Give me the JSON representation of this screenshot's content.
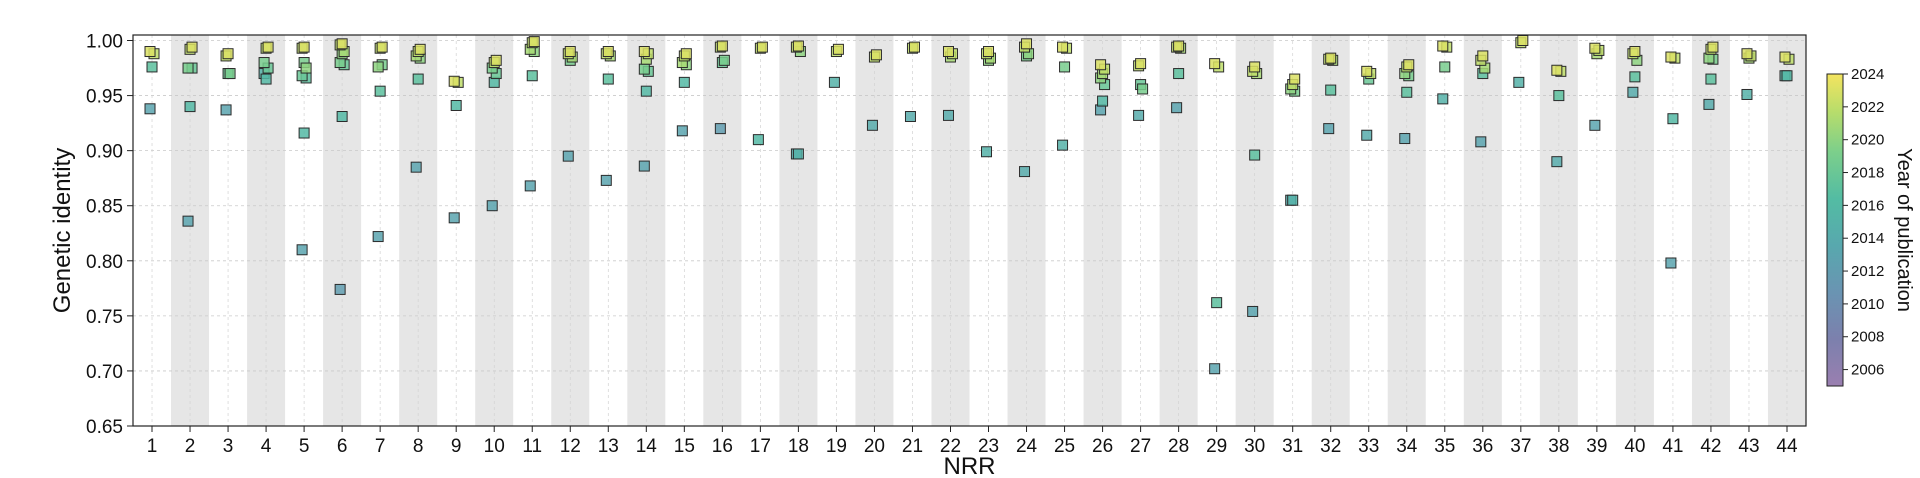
{
  "chart_data": {
    "type": "scatter",
    "xlabel": "NRR",
    "ylabel": "Genetic identity",
    "x_ticks": [
      "1",
      "2",
      "3",
      "4",
      "5",
      "6",
      "7",
      "8",
      "9",
      "10",
      "11",
      "12",
      "13",
      "14",
      "15",
      "16",
      "17",
      "18",
      "19",
      "20",
      "21",
      "22",
      "23",
      "24",
      "25",
      "26",
      "27",
      "28",
      "29",
      "30",
      "31",
      "32",
      "33",
      "34",
      "35",
      "36",
      "37",
      "38",
      "39",
      "40",
      "41",
      "42",
      "43",
      "44"
    ],
    "y_ticks": [
      "0.65",
      "0.70",
      "0.75",
      "0.80",
      "0.85",
      "0.90",
      "0.95",
      "1.00"
    ],
    "ylim": [
      0.65,
      1.005
    ],
    "grid": true,
    "alternating_shaded_columns": true,
    "colorbar": {
      "title": "Year of publication",
      "range": [
        2005,
        2024
      ],
      "ticks": [
        "2006",
        "2008",
        "2010",
        "2012",
        "2014",
        "2016",
        "2018",
        "2020",
        "2022",
        "2024"
      ],
      "colormap": "viridis"
    },
    "points": [
      {
        "nrr": 1,
        "values": [
          [
            0.99,
            2023
          ],
          [
            0.988,
            2022
          ],
          [
            0.976,
            2017
          ],
          [
            0.938,
            2013
          ]
        ]
      },
      {
        "nrr": 2,
        "values": [
          [
            0.994,
            2023
          ],
          [
            0.992,
            2022
          ],
          [
            0.975,
            2019
          ],
          [
            0.975,
            2018
          ],
          [
            0.94,
            2016
          ],
          [
            0.836,
            2013
          ]
        ]
      },
      {
        "nrr": 3,
        "values": [
          [
            0.988,
            2023
          ],
          [
            0.986,
            2022
          ],
          [
            0.97,
            2019
          ],
          [
            0.97,
            2018
          ],
          [
            0.937,
            2013
          ]
        ]
      },
      {
        "nrr": 4,
        "values": [
          [
            0.994,
            2023
          ],
          [
            0.993,
            2022
          ],
          [
            0.98,
            2019
          ],
          [
            0.975,
            2018
          ],
          [
            0.97,
            2015
          ],
          [
            0.965,
            2016
          ]
        ]
      },
      {
        "nrr": 5,
        "values": [
          [
            0.994,
            2023
          ],
          [
            0.993,
            2022
          ],
          [
            0.98,
            2019
          ],
          [
            0.975,
            2020
          ],
          [
            0.968,
            2018
          ],
          [
            0.966,
            2017
          ],
          [
            0.916,
            2016
          ],
          [
            0.81,
            2013
          ]
        ]
      },
      {
        "nrr": 6,
        "values": [
          [
            0.997,
            2023
          ],
          [
            0.996,
            2022
          ],
          [
            0.99,
            2021
          ],
          [
            0.988,
            2020
          ],
          [
            0.98,
            2019
          ],
          [
            0.978,
            2018
          ],
          [
            0.931,
            2016
          ],
          [
            0.774,
            2012
          ]
        ]
      },
      {
        "nrr": 7,
        "values": [
          [
            0.994,
            2023
          ],
          [
            0.993,
            2022
          ],
          [
            0.978,
            2019
          ],
          [
            0.976,
            2020
          ],
          [
            0.954,
            2017
          ],
          [
            0.822,
            2013
          ]
        ]
      },
      {
        "nrr": 8,
        "values": [
          [
            0.992,
            2023
          ],
          [
            0.99,
            2022
          ],
          [
            0.986,
            2021
          ],
          [
            0.984,
            2020
          ],
          [
            0.965,
            2017
          ],
          [
            0.885,
            2013
          ]
        ]
      },
      {
        "nrr": 9,
        "values": [
          [
            0.963,
            2023
          ],
          [
            0.962,
            2022
          ],
          [
            0.941,
            2016
          ],
          [
            0.839,
            2013
          ]
        ]
      },
      {
        "nrr": 10,
        "values": [
          [
            0.982,
            2023
          ],
          [
            0.98,
            2022
          ],
          [
            0.975,
            2019
          ],
          [
            0.97,
            2018
          ],
          [
            0.962,
            2016
          ],
          [
            0.85,
            2013
          ]
        ]
      },
      {
        "nrr": 11,
        "values": [
          [
            0.999,
            2023
          ],
          [
            0.998,
            2022
          ],
          [
            0.992,
            2021
          ],
          [
            0.99,
            2020
          ],
          [
            0.968,
            2017
          ],
          [
            0.868,
            2013
          ]
        ]
      },
      {
        "nrr": 12,
        "values": [
          [
            0.99,
            2023
          ],
          [
            0.988,
            2022
          ],
          [
            0.985,
            2021
          ],
          [
            0.982,
            2019
          ],
          [
            0.895,
            2013
          ]
        ]
      },
      {
        "nrr": 13,
        "values": [
          [
            0.99,
            2023
          ],
          [
            0.988,
            2022
          ],
          [
            0.986,
            2021
          ],
          [
            0.965,
            2017
          ],
          [
            0.873,
            2013
          ]
        ]
      },
      {
        "nrr": 14,
        "values": [
          [
            0.99,
            2023
          ],
          [
            0.988,
            2022
          ],
          [
            0.983,
            2021
          ],
          [
            0.974,
            2019
          ],
          [
            0.972,
            2018
          ],
          [
            0.954,
            2016
          ],
          [
            0.886,
            2013
          ]
        ]
      },
      {
        "nrr": 15,
        "values": [
          [
            0.988,
            2023
          ],
          [
            0.986,
            2022
          ],
          [
            0.98,
            2021
          ],
          [
            0.978,
            2020
          ],
          [
            0.962,
            2016
          ],
          [
            0.918,
            2013
          ]
        ]
      },
      {
        "nrr": 16,
        "values": [
          [
            0.995,
            2023
          ],
          [
            0.994,
            2022
          ],
          [
            0.982,
            2019
          ],
          [
            0.98,
            2018
          ],
          [
            0.92,
            2012
          ]
        ]
      },
      {
        "nrr": 17,
        "values": [
          [
            0.994,
            2023
          ],
          [
            0.993,
            2022
          ],
          [
            0.91,
            2016
          ]
        ]
      },
      {
        "nrr": 18,
        "values": [
          [
            0.995,
            2023
          ],
          [
            0.994,
            2022
          ],
          [
            0.99,
            2020
          ],
          [
            0.897,
            2015
          ],
          [
            0.897,
            2014
          ]
        ]
      },
      {
        "nrr": 19,
        "values": [
          [
            0.992,
            2023
          ],
          [
            0.99,
            2022
          ],
          [
            0.962,
            2015
          ]
        ]
      },
      {
        "nrr": 20,
        "values": [
          [
            0.987,
            2023
          ],
          [
            0.985,
            2022
          ],
          [
            0.923,
            2014
          ]
        ]
      },
      {
        "nrr": 21,
        "values": [
          [
            0.994,
            2023
          ],
          [
            0.993,
            2022
          ],
          [
            0.931,
            2014
          ]
        ]
      },
      {
        "nrr": 22,
        "values": [
          [
            0.99,
            2023
          ],
          [
            0.988,
            2022
          ],
          [
            0.985,
            2021
          ],
          [
            0.932,
            2014
          ]
        ]
      },
      {
        "nrr": 23,
        "values": [
          [
            0.99,
            2023
          ],
          [
            0.988,
            2022
          ],
          [
            0.984,
            2021
          ],
          [
            0.982,
            2020
          ],
          [
            0.899,
            2015
          ]
        ]
      },
      {
        "nrr": 24,
        "values": [
          [
            0.997,
            2023
          ],
          [
            0.994,
            2022
          ],
          [
            0.988,
            2020
          ],
          [
            0.986,
            2019
          ],
          [
            0.881,
            2014
          ]
        ]
      },
      {
        "nrr": 25,
        "values": [
          [
            0.994,
            2023
          ],
          [
            0.993,
            2022
          ],
          [
            0.976,
            2019
          ],
          [
            0.905,
            2015
          ]
        ]
      },
      {
        "nrr": 26,
        "values": [
          [
            0.978,
            2023
          ],
          [
            0.974,
            2022
          ],
          [
            0.97,
            2021
          ],
          [
            0.966,
            2020
          ],
          [
            0.96,
            2018
          ],
          [
            0.945,
            2016
          ],
          [
            0.937,
            2013
          ]
        ]
      },
      {
        "nrr": 27,
        "values": [
          [
            0.979,
            2023
          ],
          [
            0.977,
            2022
          ],
          [
            0.96,
            2018
          ],
          [
            0.956,
            2019
          ],
          [
            0.932,
            2014
          ]
        ]
      },
      {
        "nrr": 28,
        "values": [
          [
            0.995,
            2023
          ],
          [
            0.994,
            2022
          ],
          [
            0.993,
            2021
          ],
          [
            0.97,
            2017
          ],
          [
            0.939,
            2013
          ]
        ]
      },
      {
        "nrr": 29,
        "values": [
          [
            0.979,
            2023
          ],
          [
            0.976,
            2022
          ],
          [
            0.762,
            2017
          ],
          [
            0.702,
            2013
          ]
        ]
      },
      {
        "nrr": 30,
        "values": [
          [
            0.976,
            2023
          ],
          [
            0.972,
            2022
          ],
          [
            0.97,
            2021
          ],
          [
            0.896,
            2017
          ],
          [
            0.754,
            2013
          ]
        ]
      },
      {
        "nrr": 31,
        "values": [
          [
            0.965,
            2023
          ],
          [
            0.96,
            2022
          ],
          [
            0.956,
            2020
          ],
          [
            0.954,
            2019
          ],
          [
            0.855,
            2015
          ],
          [
            0.855,
            2014
          ]
        ]
      },
      {
        "nrr": 32,
        "values": [
          [
            0.984,
            2023
          ],
          [
            0.983,
            2022
          ],
          [
            0.982,
            2021
          ],
          [
            0.955,
            2017
          ],
          [
            0.92,
            2013
          ]
        ]
      },
      {
        "nrr": 33,
        "values": [
          [
            0.972,
            2023
          ],
          [
            0.97,
            2022
          ],
          [
            0.965,
            2018
          ],
          [
            0.914,
            2014
          ]
        ]
      },
      {
        "nrr": 34,
        "values": [
          [
            0.978,
            2023
          ],
          [
            0.976,
            2022
          ],
          [
            0.97,
            2020
          ],
          [
            0.968,
            2019
          ],
          [
            0.953,
            2017
          ],
          [
            0.911,
            2013
          ]
        ]
      },
      {
        "nrr": 35,
        "values": [
          [
            0.995,
            2023
          ],
          [
            0.994,
            2022
          ],
          [
            0.976,
            2019
          ],
          [
            0.947,
            2015
          ]
        ]
      },
      {
        "nrr": 36,
        "values": [
          [
            0.986,
            2023
          ],
          [
            0.982,
            2022
          ],
          [
            0.975,
            2021
          ],
          [
            0.97,
            2017
          ],
          [
            0.908,
            2013
          ]
        ]
      },
      {
        "nrr": 37,
        "values": [
          [
            1.0,
            2023
          ],
          [
            0.998,
            2022
          ],
          [
            0.962,
            2015
          ]
        ]
      },
      {
        "nrr": 38,
        "values": [
          [
            0.973,
            2023
          ],
          [
            0.972,
            2022
          ],
          [
            0.95,
            2017
          ],
          [
            0.89,
            2014
          ]
        ]
      },
      {
        "nrr": 39,
        "values": [
          [
            0.993,
            2023
          ],
          [
            0.991,
            2022
          ],
          [
            0.988,
            2021
          ],
          [
            0.923,
            2013
          ]
        ]
      },
      {
        "nrr": 40,
        "values": [
          [
            0.99,
            2023
          ],
          [
            0.988,
            2022
          ],
          [
            0.982,
            2020
          ],
          [
            0.967,
            2017
          ],
          [
            0.953,
            2014
          ]
        ]
      },
      {
        "nrr": 41,
        "values": [
          [
            0.985,
            2023
          ],
          [
            0.984,
            2022
          ],
          [
            0.929,
            2016
          ],
          [
            0.798,
            2013
          ]
        ]
      },
      {
        "nrr": 42,
        "values": [
          [
            0.994,
            2023
          ],
          [
            0.992,
            2022
          ],
          [
            0.984,
            2020
          ],
          [
            0.983,
            2019
          ],
          [
            0.965,
            2017
          ],
          [
            0.942,
            2014
          ]
        ]
      },
      {
        "nrr": 43,
        "values": [
          [
            0.988,
            2023
          ],
          [
            0.986,
            2022
          ],
          [
            0.984,
            2021
          ],
          [
            0.951,
            2015
          ]
        ]
      },
      {
        "nrr": 44,
        "values": [
          [
            0.985,
            2023
          ],
          [
            0.983,
            2022
          ],
          [
            0.968,
            2016
          ],
          [
            0.968,
            2015
          ]
        ]
      }
    ]
  }
}
